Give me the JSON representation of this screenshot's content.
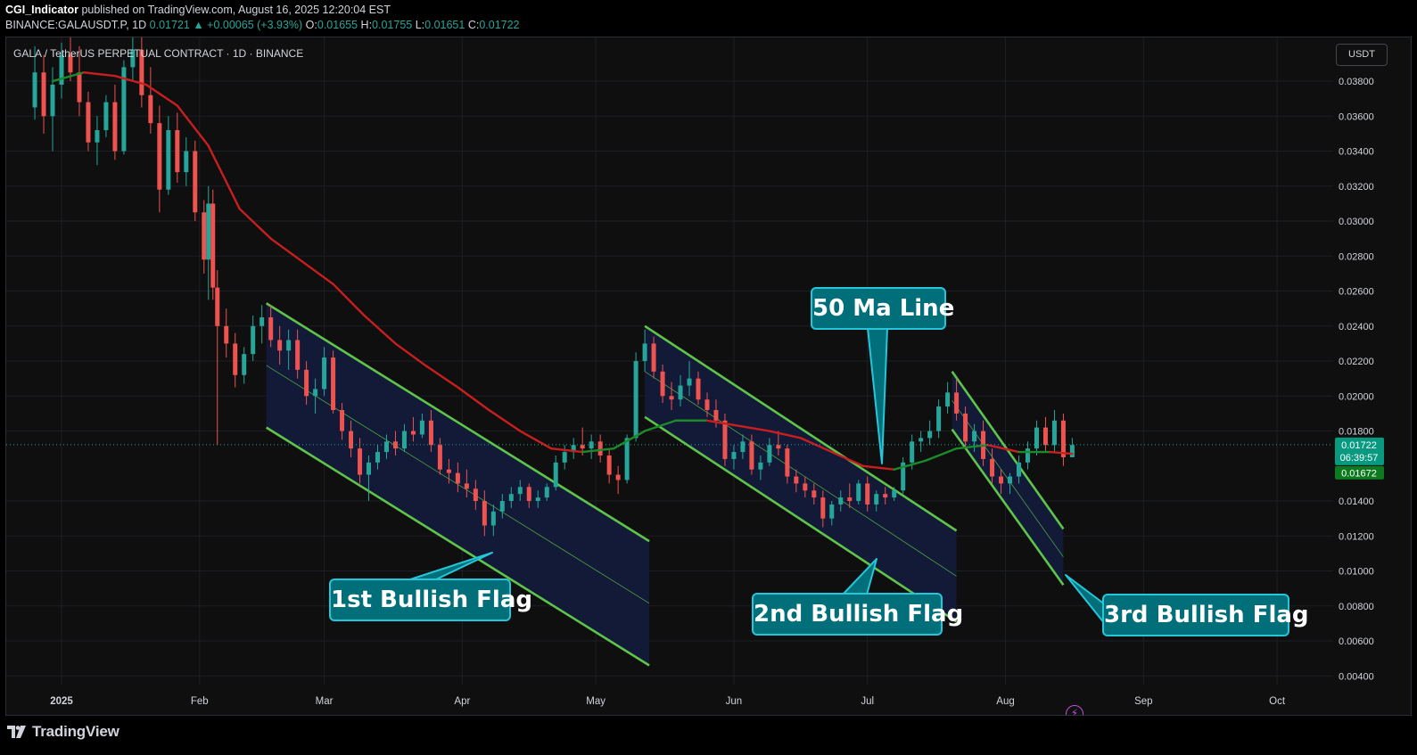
{
  "header": {
    "author": "CGI_Indicator",
    "published_text": "published on TradingView.com, August 16, 2025 12:20:04 EST"
  },
  "ohlc": {
    "symbol": "BINANCE:GALAUSDT.P, 1D",
    "last": "0.01721",
    "change": "▲ +0.00065 (+3.93%)",
    "o_label": "O:",
    "o": "0.01655",
    "h_label": "H:",
    "h": "0.01755",
    "l_label": "L:",
    "l": "0.01651",
    "c_label": "C:",
    "c": "0.01722"
  },
  "chart_title": "GALA / TetherUS PERPETUAL CONTRACT · 1D · BINANCE",
  "currency_button": "USDT",
  "footer": {
    "brand": "TradingView"
  },
  "colors": {
    "background": "#0f0f0f",
    "up": "#26a69a",
    "down": "#ef5350",
    "ma_down": "#c81e1e",
    "ma_up": "#1b8a2a",
    "channel_fill": "#131b3a",
    "channel_line": "#5ec44a",
    "callout_fill": "#006f7a",
    "callout_border": "#26c6da",
    "price_tag_up": "#089981",
    "price_tag_ma": "#0e7a20"
  },
  "chart_data": {
    "type": "candlestick",
    "y_ticks": [
      "0.03800",
      "0.03600",
      "0.03400",
      "0.03200",
      "0.03000",
      "0.02800",
      "0.02600",
      "0.02400",
      "0.02200",
      "0.02000",
      "0.01800",
      "0.01400",
      "0.01200",
      "0.01000",
      "0.00800",
      "0.00600",
      "0.00400"
    ],
    "x_ticks": [
      "2025",
      "Feb",
      "Mar",
      "Apr",
      "May",
      "Jun",
      "Jul",
      "Aug",
      "Sep",
      "Oct"
    ],
    "ylim": [
      0.0033,
      0.0405
    ],
    "last_price_tag": "0.01722",
    "countdown_tag": "06:39:57",
    "ma_price_tag": "0.01672",
    "annotations": [
      "50 Ma Line",
      "1st Bullish Flag",
      "2nd Bullish Flag",
      "3rd Bullish Flag"
    ],
    "ma_50": [
      [
        "2024-12-30",
        0.038
      ],
      [
        "2025-01-06",
        0.0385
      ],
      [
        "2025-01-13",
        0.0383
      ],
      [
        "2025-01-20",
        0.0378
      ],
      [
        "2025-01-27",
        0.0366
      ],
      [
        "2025-02-03",
        0.0343
      ],
      [
        "2025-02-10",
        0.0307
      ],
      [
        "2025-02-17",
        0.029
      ],
      [
        "2025-02-24",
        0.0277
      ],
      [
        "2025-03-03",
        0.0264
      ],
      [
        "2025-03-10",
        0.0246
      ],
      [
        "2025-03-17",
        0.023
      ],
      [
        "2025-03-24",
        0.0217
      ],
      [
        "2025-03-31",
        0.0205
      ],
      [
        "2025-04-07",
        0.0192
      ],
      [
        "2025-04-14",
        0.018
      ],
      [
        "2025-04-21",
        0.017
      ],
      [
        "2025-04-28",
        0.0168
      ],
      [
        "2025-05-05",
        0.017
      ],
      [
        "2025-05-12",
        0.018
      ],
      [
        "2025-05-19",
        0.0186
      ],
      [
        "2025-05-26",
        0.0186
      ],
      [
        "2025-06-02",
        0.0183
      ],
      [
        "2025-06-09",
        0.018
      ],
      [
        "2025-06-16",
        0.0176
      ],
      [
        "2025-06-23",
        0.0168
      ],
      [
        "2025-06-30",
        0.016
      ],
      [
        "2025-07-07",
        0.0158
      ],
      [
        "2025-07-14",
        0.0163
      ],
      [
        "2025-07-21",
        0.017
      ],
      [
        "2025-07-28",
        0.0172
      ],
      [
        "2025-08-04",
        0.0168
      ],
      [
        "2025-08-11",
        0.0168
      ],
      [
        "2025-08-16",
        0.0167
      ]
    ],
    "flags": [
      {
        "name": "1st Bullish Flag",
        "upper": [
          [
            "2025-02-16",
            0.0253
          ],
          [
            "2025-05-13",
            0.0117
          ]
        ],
        "lower": [
          [
            "2025-02-16",
            0.0182
          ],
          [
            "2025-05-13",
            0.0046
          ]
        ]
      },
      {
        "name": "2nd Bullish Flag",
        "upper": [
          [
            "2025-05-12",
            0.024
          ],
          [
            "2025-07-21",
            0.0123
          ]
        ],
        "lower": [
          [
            "2025-05-12",
            0.0188
          ],
          [
            "2025-07-21",
            0.0071
          ]
        ]
      },
      {
        "name": "3rd Bullish Flag",
        "upper": [
          [
            "2025-07-20",
            0.0214
          ],
          [
            "2025-08-14",
            0.0124
          ]
        ],
        "lower": [
          [
            "2025-07-20",
            0.0181
          ],
          [
            "2025-08-14",
            0.0092
          ]
        ]
      }
    ],
    "candles": [
      [
        "2024-12-26",
        0.0365,
        0.04,
        0.0358,
        0.0385
      ],
      [
        "2024-12-28",
        0.0385,
        0.0395,
        0.035,
        0.036
      ],
      [
        "2024-12-30",
        0.036,
        0.0388,
        0.034,
        0.0378
      ],
      [
        "2025-01-01",
        0.0378,
        0.0402,
        0.037,
        0.0395
      ],
      [
        "2025-01-03",
        0.0395,
        0.0408,
        0.038,
        0.0385
      ],
      [
        "2025-01-05",
        0.0385,
        0.04,
        0.036,
        0.0368
      ],
      [
        "2025-01-07",
        0.0368,
        0.0374,
        0.034,
        0.0345
      ],
      [
        "2025-01-09",
        0.0345,
        0.036,
        0.0332,
        0.0352
      ],
      [
        "2025-01-11",
        0.0352,
        0.0372,
        0.0348,
        0.0368
      ],
      [
        "2025-01-13",
        0.0368,
        0.0378,
        0.0335,
        0.034
      ],
      [
        "2025-01-15",
        0.034,
        0.0392,
        0.0338,
        0.0388
      ],
      [
        "2025-01-17",
        0.0388,
        0.0405,
        0.038,
        0.0398
      ],
      [
        "2025-01-19",
        0.0398,
        0.041,
        0.0365,
        0.0372
      ],
      [
        "2025-01-21",
        0.0372,
        0.0388,
        0.035,
        0.0356
      ],
      [
        "2025-01-23",
        0.0356,
        0.0366,
        0.0305,
        0.0318
      ],
      [
        "2025-01-25",
        0.0318,
        0.036,
        0.0315,
        0.0352
      ],
      [
        "2025-01-27",
        0.0352,
        0.0362,
        0.0322,
        0.0328
      ],
      [
        "2025-01-29",
        0.0328,
        0.0348,
        0.032,
        0.034
      ],
      [
        "2025-01-31",
        0.034,
        0.0346,
        0.03,
        0.0305
      ],
      [
        "2025-02-02",
        0.0305,
        0.0312,
        0.027,
        0.0278
      ],
      [
        "2025-02-03",
        0.0278,
        0.032,
        0.0255,
        0.031
      ],
      [
        "2025-02-04",
        0.031,
        0.0318,
        0.0255,
        0.0262
      ],
      [
        "2025-02-05",
        0.0262,
        0.0272,
        0.0172,
        0.024
      ],
      [
        "2025-02-07",
        0.024,
        0.025,
        0.0222,
        0.023
      ],
      [
        "2025-02-09",
        0.023,
        0.0236,
        0.0205,
        0.0212
      ],
      [
        "2025-02-11",
        0.0212,
        0.0228,
        0.0207,
        0.0224
      ],
      [
        "2025-02-13",
        0.0224,
        0.0246,
        0.022,
        0.024
      ],
      [
        "2025-02-15",
        0.024,
        0.0252,
        0.023,
        0.0245
      ],
      [
        "2025-02-17",
        0.0245,
        0.0252,
        0.0228,
        0.0232
      ],
      [
        "2025-02-19",
        0.0232,
        0.024,
        0.0218,
        0.0226
      ],
      [
        "2025-02-21",
        0.0226,
        0.0238,
        0.0215,
        0.0232
      ],
      [
        "2025-02-23",
        0.0232,
        0.0238,
        0.021,
        0.0215
      ],
      [
        "2025-02-25",
        0.0215,
        0.022,
        0.0195,
        0.02
      ],
      [
        "2025-02-27",
        0.02,
        0.021,
        0.019,
        0.0204
      ],
      [
        "2025-03-01",
        0.0204,
        0.0228,
        0.02,
        0.0222
      ],
      [
        "2025-03-03",
        0.0222,
        0.0226,
        0.019,
        0.0192
      ],
      [
        "2025-03-05",
        0.0192,
        0.0196,
        0.0175,
        0.018
      ],
      [
        "2025-03-07",
        0.018,
        0.0186,
        0.0165,
        0.017
      ],
      [
        "2025-03-09",
        0.017,
        0.0176,
        0.015,
        0.0155
      ],
      [
        "2025-03-11",
        0.0155,
        0.0166,
        0.014,
        0.0162
      ],
      [
        "2025-03-13",
        0.0162,
        0.0172,
        0.0158,
        0.0168
      ],
      [
        "2025-03-15",
        0.0168,
        0.0178,
        0.0164,
        0.0174
      ],
      [
        "2025-03-17",
        0.0174,
        0.018,
        0.0166,
        0.017
      ],
      [
        "2025-03-19",
        0.017,
        0.0184,
        0.0168,
        0.018
      ],
      [
        "2025-03-21",
        0.018,
        0.0188,
        0.0174,
        0.0178
      ],
      [
        "2025-03-23",
        0.0178,
        0.019,
        0.0176,
        0.0186
      ],
      [
        "2025-03-25",
        0.0186,
        0.0192,
        0.0168,
        0.0172
      ],
      [
        "2025-03-27",
        0.0172,
        0.0176,
        0.0155,
        0.0158
      ],
      [
        "2025-03-29",
        0.0158,
        0.0164,
        0.015,
        0.0156
      ],
      [
        "2025-03-31",
        0.0156,
        0.0162,
        0.0145,
        0.015
      ],
      [
        "2025-04-02",
        0.015,
        0.0158,
        0.0142,
        0.0147
      ],
      [
        "2025-04-04",
        0.0147,
        0.0152,
        0.0135,
        0.014
      ],
      [
        "2025-04-06",
        0.014,
        0.0146,
        0.012,
        0.0126
      ],
      [
        "2025-04-08",
        0.0126,
        0.0138,
        0.012,
        0.0134
      ],
      [
        "2025-04-10",
        0.0134,
        0.0144,
        0.013,
        0.014
      ],
      [
        "2025-04-12",
        0.014,
        0.0148,
        0.0136,
        0.0144
      ],
      [
        "2025-04-14",
        0.0144,
        0.0152,
        0.014,
        0.0148
      ],
      [
        "2025-04-16",
        0.0148,
        0.015,
        0.0136,
        0.014
      ],
      [
        "2025-04-18",
        0.014,
        0.0146,
        0.0136,
        0.0142
      ],
      [
        "2025-04-20",
        0.0142,
        0.015,
        0.014,
        0.0148
      ],
      [
        "2025-04-22",
        0.0148,
        0.0166,
        0.0146,
        0.0162
      ],
      [
        "2025-04-24",
        0.0162,
        0.0172,
        0.0158,
        0.0168
      ],
      [
        "2025-04-26",
        0.0168,
        0.0176,
        0.0164,
        0.0172
      ],
      [
        "2025-04-28",
        0.0172,
        0.0182,
        0.0166,
        0.017
      ],
      [
        "2025-04-30",
        0.017,
        0.0178,
        0.0164,
        0.0174
      ],
      [
        "2025-05-02",
        0.0174,
        0.0178,
        0.0162,
        0.0166
      ],
      [
        "2025-05-04",
        0.0166,
        0.017,
        0.015,
        0.0155
      ],
      [
        "2025-05-06",
        0.0155,
        0.016,
        0.0144,
        0.0152
      ],
      [
        "2025-05-08",
        0.0152,
        0.0178,
        0.015,
        0.0176
      ],
      [
        "2025-05-10",
        0.0176,
        0.0225,
        0.0174,
        0.022
      ],
      [
        "2025-05-12",
        0.022,
        0.0238,
        0.0214,
        0.023
      ],
      [
        "2025-05-14",
        0.023,
        0.0234,
        0.021,
        0.0214
      ],
      [
        "2025-05-16",
        0.0214,
        0.0218,
        0.0196,
        0.02
      ],
      [
        "2025-05-18",
        0.02,
        0.0208,
        0.0192,
        0.0198
      ],
      [
        "2025-05-20",
        0.0198,
        0.0212,
        0.0194,
        0.0206
      ],
      [
        "2025-05-22",
        0.0206,
        0.022,
        0.02,
        0.021
      ],
      [
        "2025-05-24",
        0.021,
        0.0214,
        0.0195,
        0.0198
      ],
      [
        "2025-05-26",
        0.0198,
        0.0202,
        0.0188,
        0.0192
      ],
      [
        "2025-05-28",
        0.0192,
        0.0198,
        0.0182,
        0.0186
      ],
      [
        "2025-05-30",
        0.0186,
        0.019,
        0.016,
        0.0164
      ],
      [
        "2025-06-01",
        0.0164,
        0.0172,
        0.0158,
        0.0168
      ],
      [
        "2025-06-03",
        0.0168,
        0.0178,
        0.0164,
        0.0174
      ],
      [
        "2025-06-05",
        0.0174,
        0.0178,
        0.0155,
        0.0158
      ],
      [
        "2025-06-07",
        0.0158,
        0.0166,
        0.0152,
        0.0162
      ],
      [
        "2025-06-09",
        0.0162,
        0.0176,
        0.016,
        0.0172
      ],
      [
        "2025-06-11",
        0.0172,
        0.018,
        0.0166,
        0.017
      ],
      [
        "2025-06-13",
        0.017,
        0.0172,
        0.015,
        0.0154
      ],
      [
        "2025-06-15",
        0.0154,
        0.0158,
        0.0145,
        0.015
      ],
      [
        "2025-06-17",
        0.015,
        0.0154,
        0.0142,
        0.0146
      ],
      [
        "2025-06-19",
        0.0146,
        0.015,
        0.0138,
        0.0142
      ],
      [
        "2025-06-21",
        0.0142,
        0.0146,
        0.0125,
        0.013
      ],
      [
        "2025-06-23",
        0.013,
        0.014,
        0.0126,
        0.0138
      ],
      [
        "2025-06-25",
        0.0138,
        0.0146,
        0.0134,
        0.0142
      ],
      [
        "2025-06-27",
        0.0142,
        0.015,
        0.0136,
        0.014
      ],
      [
        "2025-06-29",
        0.014,
        0.0152,
        0.0138,
        0.015
      ],
      [
        "2025-07-01",
        0.015,
        0.0154,
        0.0134,
        0.0138
      ],
      [
        "2025-07-03",
        0.0138,
        0.0146,
        0.0134,
        0.0144
      ],
      [
        "2025-07-05",
        0.0144,
        0.0148,
        0.0138,
        0.0142
      ],
      [
        "2025-07-07",
        0.0142,
        0.0148,
        0.014,
        0.0146
      ],
      [
        "2025-07-09",
        0.0146,
        0.0165,
        0.0144,
        0.0162
      ],
      [
        "2025-07-11",
        0.0162,
        0.0178,
        0.0158,
        0.0174
      ],
      [
        "2025-07-13",
        0.0174,
        0.018,
        0.0168,
        0.0176
      ],
      [
        "2025-07-15",
        0.0176,
        0.0186,
        0.0172,
        0.018
      ],
      [
        "2025-07-17",
        0.018,
        0.0198,
        0.0176,
        0.0194
      ],
      [
        "2025-07-19",
        0.0194,
        0.0208,
        0.019,
        0.0202
      ],
      [
        "2025-07-21",
        0.0202,
        0.021,
        0.0186,
        0.019
      ],
      [
        "2025-07-23",
        0.019,
        0.0194,
        0.017,
        0.0174
      ],
      [
        "2025-07-25",
        0.0174,
        0.0184,
        0.0168,
        0.018
      ],
      [
        "2025-07-27",
        0.018,
        0.0186,
        0.016,
        0.0164
      ],
      [
        "2025-07-29",
        0.0164,
        0.017,
        0.015,
        0.0154
      ],
      [
        "2025-07-31",
        0.0154,
        0.0158,
        0.0144,
        0.015
      ],
      [
        "2025-08-02",
        0.015,
        0.0156,
        0.0144,
        0.0154
      ],
      [
        "2025-08-04",
        0.0154,
        0.0166,
        0.015,
        0.0162
      ],
      [
        "2025-08-06",
        0.0162,
        0.0174,
        0.0158,
        0.017
      ],
      [
        "2025-08-08",
        0.017,
        0.0186,
        0.0166,
        0.0182
      ],
      [
        "2025-08-10",
        0.0182,
        0.0188,
        0.0168,
        0.0172
      ],
      [
        "2025-08-12",
        0.0172,
        0.0192,
        0.0168,
        0.0186
      ],
      [
        "2025-08-14",
        0.0186,
        0.019,
        0.016,
        0.0165
      ],
      [
        "2025-08-16",
        0.0165,
        0.0176,
        0.0165,
        0.0172
      ]
    ]
  }
}
